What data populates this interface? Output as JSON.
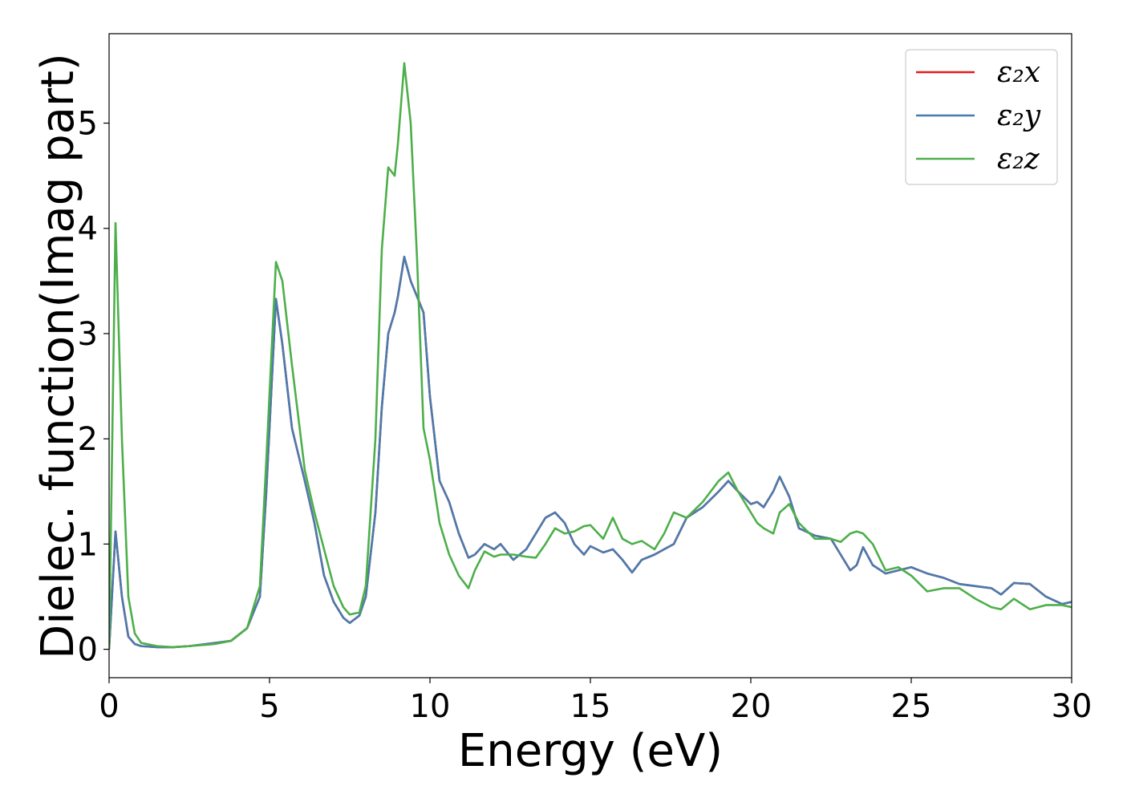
{
  "chart_data": {
    "type": "line",
    "xlabel": "Energy (eV)",
    "ylabel": "Dielec. function(Imag part)",
    "xlim": [
      0,
      30
    ],
    "ylim": [
      -0.27,
      5.85
    ],
    "xticks": [
      0,
      5,
      10,
      15,
      20,
      25,
      30
    ],
    "yticks": [
      0,
      1,
      2,
      3,
      4,
      5
    ],
    "legend": "upper right",
    "grid": false,
    "x": [
      0,
      0.2,
      0.4,
      0.6,
      0.8,
      1,
      1.5,
      2,
      2.5,
      3.3,
      3.8,
      4.3,
      4.7,
      4.9,
      5.2,
      5.4,
      5.7,
      6.1,
      6.4,
      6.7,
      7.0,
      7.3,
      7.5,
      7.8,
      8.0,
      8.3,
      8.5,
      8.7,
      8.9,
      9.0,
      9.2,
      9.4,
      9.6,
      9.8,
      10.0,
      10.3,
      10.6,
      10.9,
      11.2,
      11.4,
      11.7,
      12,
      12.2,
      12.6,
      13,
      13.3,
      13.6,
      13.9,
      14.2,
      14.5,
      14.8,
      15,
      15.4,
      15.7,
      16,
      16.3,
      16.6,
      17,
      17.3,
      17.6,
      18,
      18.5,
      19,
      19.3,
      19.6,
      20,
      20.2,
      20.4,
      20.7,
      20.9,
      21.2,
      21.5,
      22,
      22.5,
      22.8,
      23.1,
      23.3,
      23.5,
      23.8,
      24.2,
      24.6,
      25,
      25.5,
      26,
      26.5,
      27,
      27.5,
      27.8,
      28.2,
      28.7,
      29.2,
      29.7,
      30
    ],
    "series": [
      {
        "name": "ε₂x",
        "color": "#e41a1c",
        "values": [
          0,
          1.12,
          0.5,
          0.12,
          0.05,
          0.03,
          0.02,
          0.02,
          0.03,
          0.06,
          0.08,
          0.2,
          0.5,
          1.5,
          3.33,
          2.9,
          2.1,
          1.6,
          1.2,
          0.7,
          0.45,
          0.3,
          0.25,
          0.32,
          0.5,
          1.3,
          2.3,
          3.0,
          3.2,
          3.35,
          3.73,
          3.5,
          3.35,
          3.2,
          2.4,
          1.6,
          1.4,
          1.1,
          0.87,
          0.9,
          1.0,
          0.95,
          1.0,
          0.85,
          0.95,
          1.1,
          1.25,
          1.3,
          1.2,
          1.0,
          0.9,
          0.98,
          0.92,
          0.95,
          0.85,
          0.73,
          0.85,
          0.9,
          0.95,
          1.0,
          1.25,
          1.35,
          1.5,
          1.6,
          1.5,
          1.38,
          1.4,
          1.35,
          1.5,
          1.64,
          1.45,
          1.15,
          1.08,
          1.05,
          0.9,
          0.75,
          0.8,
          0.97,
          0.8,
          0.72,
          0.75,
          0.78,
          0.72,
          0.68,
          0.62,
          0.6,
          0.58,
          0.52,
          0.63,
          0.62,
          0.5,
          0.43,
          0.45
        ]
      },
      {
        "name": "ε₂y",
        "color": "#4a7bad",
        "values": [
          0,
          1.12,
          0.5,
          0.12,
          0.05,
          0.03,
          0.02,
          0.02,
          0.03,
          0.06,
          0.08,
          0.2,
          0.5,
          1.5,
          3.33,
          2.9,
          2.1,
          1.6,
          1.2,
          0.7,
          0.45,
          0.3,
          0.25,
          0.32,
          0.5,
          1.3,
          2.3,
          3.0,
          3.2,
          3.35,
          3.73,
          3.5,
          3.35,
          3.2,
          2.4,
          1.6,
          1.4,
          1.1,
          0.87,
          0.9,
          1.0,
          0.95,
          1.0,
          0.85,
          0.95,
          1.1,
          1.25,
          1.3,
          1.2,
          1.0,
          0.9,
          0.98,
          0.92,
          0.95,
          0.85,
          0.73,
          0.85,
          0.9,
          0.95,
          1.0,
          1.25,
          1.35,
          1.5,
          1.6,
          1.5,
          1.38,
          1.4,
          1.35,
          1.5,
          1.64,
          1.45,
          1.15,
          1.08,
          1.05,
          0.9,
          0.75,
          0.8,
          0.97,
          0.8,
          0.72,
          0.75,
          0.78,
          0.72,
          0.68,
          0.62,
          0.6,
          0.58,
          0.52,
          0.63,
          0.62,
          0.5,
          0.43,
          0.45
        ]
      },
      {
        "name": "ε₂z",
        "color": "#4daf4a",
        "values": [
          0,
          4.05,
          2.0,
          0.5,
          0.15,
          0.06,
          0.03,
          0.02,
          0.03,
          0.05,
          0.08,
          0.2,
          0.6,
          1.8,
          3.68,
          3.5,
          2.7,
          1.7,
          1.3,
          0.95,
          0.6,
          0.4,
          0.33,
          0.35,
          0.6,
          2.0,
          3.8,
          4.58,
          4.5,
          4.8,
          5.57,
          5.0,
          3.7,
          2.1,
          1.8,
          1.2,
          0.9,
          0.7,
          0.58,
          0.75,
          0.93,
          0.88,
          0.9,
          0.9,
          0.88,
          0.87,
          1.0,
          1.15,
          1.1,
          1.12,
          1.17,
          1.18,
          1.05,
          1.25,
          1.05,
          1.0,
          1.03,
          0.95,
          1.1,
          1.3,
          1.25,
          1.4,
          1.6,
          1.68,
          1.5,
          1.3,
          1.2,
          1.15,
          1.1,
          1.3,
          1.38,
          1.2,
          1.05,
          1.05,
          1.02,
          1.1,
          1.12,
          1.1,
          1.0,
          0.75,
          0.78,
          0.7,
          0.55,
          0.58,
          0.58,
          0.48,
          0.4,
          0.38,
          0.48,
          0.38,
          0.42,
          0.42,
          0.4
        ]
      }
    ]
  }
}
